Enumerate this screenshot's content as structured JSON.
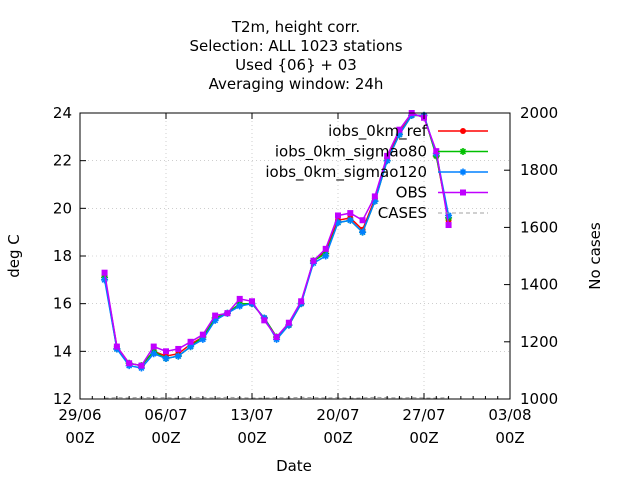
{
  "chart_data": {
    "type": "line",
    "title_lines": [
      "T2m, height corr.",
      "Selection: ALL    1023 stations",
      "Used {06} + 03",
      "Averaging window: 24h"
    ],
    "xlabel": "Date",
    "ylabel": "deg C",
    "y2label": "No cases",
    "xlim_days": [
      0,
      35
    ],
    "x_ticks": [
      {
        "day": 0,
        "line1": "29/06",
        "line2": "00Z"
      },
      {
        "day": 7,
        "line1": "06/07",
        "line2": "00Z"
      },
      {
        "day": 14,
        "line1": "13/07",
        "line2": "00Z"
      },
      {
        "day": 21,
        "line1": "20/07",
        "line2": "00Z"
      },
      {
        "day": 28,
        "line1": "27/07",
        "line2": "00Z"
      },
      {
        "day": 35,
        "line1": "03/08",
        "line2": "00Z"
      }
    ],
    "ylim": [
      12,
      24
    ],
    "y_ticks": [
      "12",
      "14",
      "16",
      "18",
      "20",
      "22",
      "24"
    ],
    "y2lim": [
      1000,
      2000
    ],
    "y2_ticks": [
      "1000",
      "1200",
      "1400",
      "1600",
      "1800",
      "2000"
    ],
    "legend_position": "top-right",
    "x": [
      2,
      3,
      4,
      5,
      6,
      7,
      8,
      9,
      10,
      11,
      12,
      13,
      14,
      15,
      16,
      17,
      18,
      19,
      20,
      21,
      22,
      23,
      24,
      25,
      26,
      27,
      28,
      29,
      30
    ],
    "series": [
      {
        "name": "iobs_0km_ref",
        "color": "#ff0000",
        "marker": "circle",
        "values": [
          17.2,
          14.2,
          13.5,
          13.4,
          14.0,
          13.8,
          13.9,
          14.3,
          14.6,
          15.4,
          15.6,
          16.0,
          16.0,
          15.4,
          14.6,
          15.1,
          16.0,
          17.8,
          18.2,
          19.5,
          19.6,
          19.1,
          20.4,
          22.1,
          23.2,
          23.9,
          23.9,
          22.2,
          19.5
        ]
      },
      {
        "name": "iobs_0km_sigmao80",
        "color": "#00c000",
        "marker": "star",
        "values": [
          17.1,
          14.1,
          13.5,
          13.4,
          14.0,
          13.7,
          13.8,
          14.2,
          14.6,
          15.4,
          15.6,
          16.0,
          16.0,
          15.4,
          14.6,
          15.1,
          16.0,
          17.8,
          18.1,
          19.4,
          19.5,
          19.0,
          20.3,
          22.0,
          23.1,
          23.9,
          23.9,
          22.2,
          19.6
        ]
      },
      {
        "name": "iobs_0km_sigmao120",
        "color": "#0080ff",
        "marker": "star",
        "values": [
          17.0,
          14.1,
          13.4,
          13.3,
          13.9,
          13.7,
          13.8,
          14.2,
          14.5,
          15.3,
          15.6,
          15.9,
          16.0,
          15.4,
          14.5,
          15.1,
          16.0,
          17.7,
          18.0,
          19.4,
          19.5,
          19.0,
          20.3,
          22.0,
          23.1,
          23.9,
          23.9,
          22.3,
          19.7
        ]
      },
      {
        "name": "OBS",
        "color": "#c000ff",
        "marker": "square",
        "values": [
          17.3,
          14.2,
          13.5,
          13.4,
          14.2,
          14.0,
          14.1,
          14.4,
          14.7,
          15.5,
          15.6,
          16.2,
          16.1,
          15.3,
          14.6,
          15.2,
          16.1,
          17.8,
          18.3,
          19.7,
          19.8,
          19.5,
          20.5,
          22.2,
          23.3,
          24.0,
          23.8,
          22.4,
          19.3
        ]
      },
      {
        "name": "CASES",
        "color": "#a0a0a0",
        "marker": "none",
        "axis": "y2",
        "values": [
          1003,
          1005,
          1004,
          1006,
          1004,
          1005,
          1003,
          1006,
          1005,
          1004,
          1006,
          1005,
          1004,
          1003,
          1005,
          1004,
          1006,
          1005,
          1004,
          1005,
          1003,
          1004,
          1006,
          1005,
          1004,
          1005,
          1004,
          1003,
          1005
        ]
      }
    ]
  }
}
